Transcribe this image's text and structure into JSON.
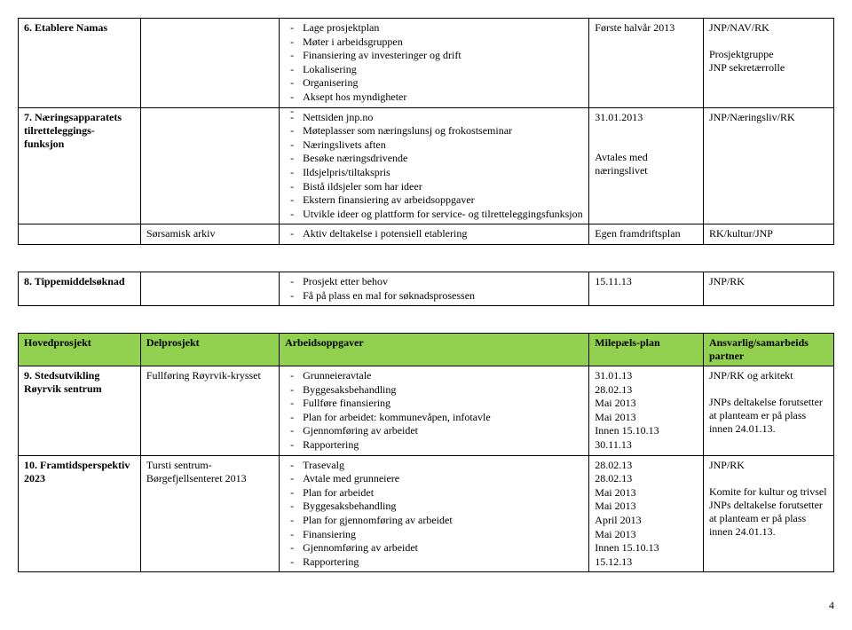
{
  "colors": {
    "header_green": "#92d050",
    "border": "#000000",
    "text": "#000000",
    "background": "#ffffff"
  },
  "table1": {
    "rows": [
      {
        "c0_bold": "6. Etablere Namas",
        "c1": "",
        "c2_items": [
          "Lage prosjektplan",
          "Møter i arbeidsgruppen",
          "Finansiering av investeringer og drift",
          "Lokalisering",
          "Organisering",
          "Aksept hos myndigheter",
          ""
        ],
        "c3": "Første halvår 2013",
        "c4": "JNP/NAV/RK\n\nProsjektgruppe\nJNP sekretærrolle"
      },
      {
        "c0_bold": "7. Næringsapparatets tilretteleggings-funksjon",
        "c1": "",
        "c2_items": [
          "Nettsiden jnp.no",
          "Møteplasser som næringslunsj og frokostseminar",
          "Næringslivets aften",
          "Besøke næringsdrivende",
          "Ildsjelpris/tiltakspris",
          "Bistå ildsjeler som har ideer",
          "Ekstern finansiering av arbeidsoppgaver",
          "Utvikle ideer og plattform for service- og tilretteleggingsfunksjon"
        ],
        "c3": "31.01.2013\n\n\nAvtales med næringslivet",
        "c4": "JNP/Næringsliv/RK"
      },
      {
        "c0": "",
        "c1": "Sørsamisk arkiv",
        "c2_items": [
          "Aktiv deltakelse i potensiell etablering"
        ],
        "c3": "Egen framdriftsplan",
        "c4": "RK/kultur/JNP"
      }
    ]
  },
  "table2": {
    "rows": [
      {
        "c0_bold": "8. Tippemiddelsøknad",
        "c1": "",
        "c2_items": [
          "Prosjekt etter behov",
          "Få på plass en mal for søknadsprosessen"
        ],
        "c3": "15.11.13",
        "c4": "JNP/RK"
      }
    ]
  },
  "table3": {
    "header": [
      "Hovedprosjekt",
      "Delprosjekt",
      "Arbeidsoppgaver",
      "Milepæls-plan",
      "Ansvarlig/samarbeids partner"
    ],
    "rows": [
      {
        "c0_bold": "9. Stedsutvikling Røyrvik sentrum",
        "c1": "Fullføring Røyrvik-krysset",
        "c2_items": [
          "Grunneieravtale",
          "Byggesaksbehandling",
          "Fullføre finansiering",
          "Plan for arbeidet: kommunevåpen, infotavle",
          "Gjennomføring av arbeidet",
          "Rapportering"
        ],
        "c3_lines": [
          "31.01.13",
          "28.02.13",
          "Mai 2013",
          "Mai 2013",
          "Innen 15.10.13",
          "30.11.13"
        ],
        "c4": "JNP/RK og arkitekt\n\nJNPs deltakelse forutsetter at planteam er på plass innen 24.01.13."
      },
      {
        "c0_bold": "10. Framtidsperspektiv 2023",
        "c1": "Tursti sentrum-\nBørgefjellsenteret 2013",
        "c2_items": [
          "Trasevalg",
          "Avtale med grunneiere",
          "Plan for arbeidet",
          "Byggesaksbehandling",
          "Plan for gjennomføring av arbeidet",
          "Finansiering",
          "Gjennomføring av arbeidet",
          "Rapportering"
        ],
        "c3_lines": [
          "28.02.13",
          "28.02.13",
          "Mai 2013",
          "Mai 2013",
          "April 2013",
          "Mai 2013",
          "Innen 15.10.13",
          "15.12.13"
        ],
        "c4": "JNP/RK\n\nKomite for kultur og trivsel\nJNPs deltakelse forutsetter at planteam er på plass innen 24.01.13."
      }
    ]
  },
  "page_number": "4"
}
